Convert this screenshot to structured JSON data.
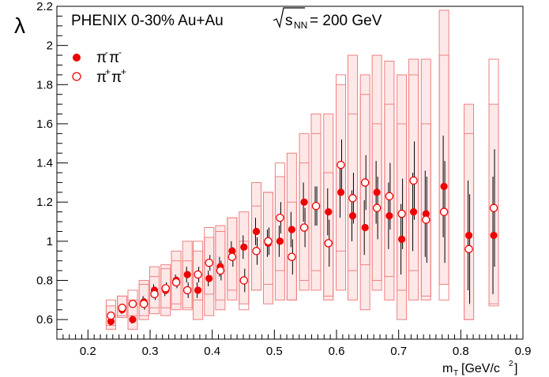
{
  "chart_data": {
    "type": "scatter",
    "title": "PHENIX 0-30%  Au+Au",
    "energy_label": "= 200 GeV",
    "sqrt_label": "s",
    "sqrt_sub": "NN",
    "ylabel": "λ",
    "xlabel_main": "m",
    "xlabel_sub": "T",
    "xlabel_units": "[GeV/c",
    "xlabel_units_sup": "2",
    "xlabel_units_close": "]",
    "xlim": [
      0.15,
      0.9
    ],
    "ylim": [
      0.5,
      2.2
    ],
    "x_ticks": [
      "0.2",
      "0.3",
      "0.4",
      "0.5",
      "0.6",
      "0.7",
      "0.8",
      "0.9"
    ],
    "y_ticks": [
      "0.6",
      "0.8",
      "1",
      "1.2",
      "1.4",
      "1.6",
      "1.8",
      "2",
      "2.2"
    ],
    "colors": {
      "marker": "#ee0000",
      "band_fill": "#fde4e4",
      "band_stroke": "#f08080",
      "errorbar": "#000000",
      "frame": "#000000"
    },
    "legend": {
      "position": "top-left",
      "entries": [
        {
          "name_base": "π",
          "name_sup1": "-",
          "name_base2": "π",
          "name_sup2": "-",
          "marker": "filled"
        },
        {
          "name_base": "π",
          "name_sup1": "+",
          "name_base2": "π",
          "name_sup2": "+",
          "marker": "open"
        }
      ]
    },
    "series": [
      {
        "name": "π-π-",
        "marker": "filled",
        "x": [
          0.237,
          0.255,
          0.272,
          0.29,
          0.307,
          0.325,
          0.342,
          0.36,
          0.377,
          0.395,
          0.413,
          0.432,
          0.451,
          0.471,
          0.49,
          0.509,
          0.528,
          0.548,
          0.567,
          0.587,
          0.607,
          0.626,
          0.646,
          0.665,
          0.685,
          0.705,
          0.724,
          0.744,
          0.773,
          0.813,
          0.853
        ],
        "y": [
          0.59,
          0.65,
          0.6,
          0.69,
          0.75,
          0.75,
          0.8,
          0.83,
          0.75,
          0.81,
          0.87,
          0.95,
          0.97,
          1.05,
          0.99,
          1.0,
          1.06,
          1.2,
          1.18,
          1.15,
          1.25,
          1.13,
          1.07,
          1.25,
          1.13,
          1.01,
          1.15,
          1.14,
          1.28,
          1.03,
          1.03
        ],
        "err": [
          0.02,
          0.02,
          0.02,
          0.03,
          0.03,
          0.03,
          0.03,
          0.04,
          0.04,
          0.04,
          0.05,
          0.05,
          0.06,
          0.07,
          0.07,
          0.08,
          0.09,
          0.1,
          0.1,
          0.12,
          0.13,
          0.13,
          0.14,
          0.16,
          0.17,
          0.18,
          0.2,
          0.22,
          0.26,
          0.28,
          0.3
        ],
        "sys_low": [
          0.55,
          0.61,
          0.55,
          0.6,
          0.63,
          0.62,
          0.65,
          0.66,
          0.6,
          0.62,
          0.65,
          0.7,
          0.68,
          0.75,
          0.68,
          0.7,
          0.7,
          0.75,
          0.75,
          0.7,
          0.75,
          0.7,
          0.65,
          0.75,
          0.7,
          0.6,
          0.7,
          0.7,
          0.78,
          0.6,
          0.68
        ],
        "sys_high": [
          0.67,
          0.72,
          0.7,
          0.8,
          0.87,
          0.88,
          0.95,
          1.0,
          0.95,
          1.02,
          1.08,
          1.12,
          1.15,
          1.3,
          1.25,
          1.33,
          1.45,
          1.55,
          1.65,
          1.65,
          1.8,
          1.95,
          1.85,
          1.95,
          1.92,
          1.85,
          1.93,
          1.93,
          2.18,
          1.7,
          1.7
        ]
      },
      {
        "name": "π+π+",
        "marker": "open",
        "x": [
          0.237,
          0.255,
          0.272,
          0.29,
          0.307,
          0.325,
          0.342,
          0.36,
          0.377,
          0.395,
          0.413,
          0.432,
          0.451,
          0.471,
          0.49,
          0.509,
          0.528,
          0.548,
          0.567,
          0.587,
          0.607,
          0.626,
          0.646,
          0.665,
          0.685,
          0.705,
          0.724,
          0.744,
          0.773,
          0.813,
          0.853
        ],
        "y": [
          0.62,
          0.66,
          0.68,
          0.68,
          0.73,
          0.76,
          0.79,
          0.75,
          0.83,
          0.89,
          0.85,
          0.92,
          0.8,
          0.95,
          1.0,
          1.12,
          0.92,
          1.07,
          1.18,
          0.99,
          1.39,
          1.22,
          1.3,
          1.17,
          1.23,
          1.14,
          1.31,
          1.11,
          1.15,
          0.96,
          1.17
        ],
        "err": [
          0.02,
          0.02,
          0.02,
          0.03,
          0.03,
          0.03,
          0.03,
          0.04,
          0.04,
          0.04,
          0.05,
          0.05,
          0.06,
          0.07,
          0.07,
          0.08,
          0.09,
          0.1,
          0.1,
          0.12,
          0.13,
          0.13,
          0.14,
          0.16,
          0.17,
          0.18,
          0.2,
          0.22,
          0.26,
          0.28,
          0.3
        ],
        "sys_low": [
          0.57,
          0.62,
          0.62,
          0.62,
          0.66,
          0.66,
          0.68,
          0.65,
          0.7,
          0.73,
          0.7,
          0.75,
          0.65,
          0.75,
          0.78,
          0.85,
          0.7,
          0.8,
          0.85,
          0.72,
          0.95,
          0.85,
          0.88,
          0.8,
          0.82,
          0.75,
          0.85,
          0.72,
          0.7,
          0.6,
          0.67
        ],
        "sys_high": [
          0.7,
          0.72,
          0.75,
          0.78,
          0.82,
          0.86,
          0.9,
          0.9,
          1.0,
          1.07,
          1.05,
          1.12,
          1.0,
          1.18,
          1.25,
          1.4,
          1.2,
          1.4,
          1.55,
          1.35,
          1.85,
          1.65,
          1.75,
          1.6,
          1.7,
          1.6,
          1.85,
          1.6,
          1.95,
          1.55,
          1.93
        ]
      }
    ]
  }
}
